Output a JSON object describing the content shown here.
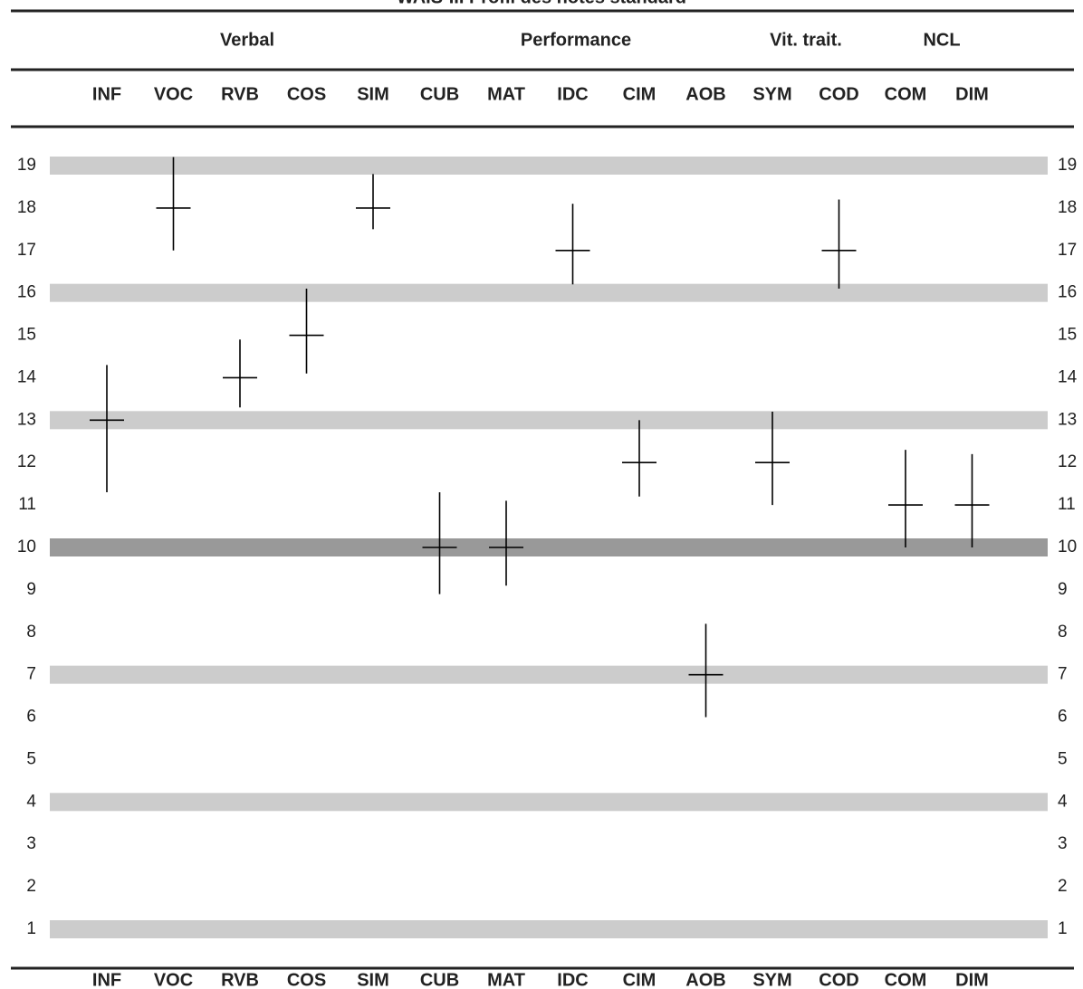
{
  "chart_data": {
    "type": "range",
    "title": "WAIS-III Profil des notes standard",
    "groups": [
      "Verbal",
      "Performance",
      "Vit. trait.",
      "NCL"
    ],
    "categories": [
      "INF",
      "VOC",
      "RVB",
      "COS",
      "SIM",
      "CUB",
      "MAT",
      "IDC",
      "CIM",
      "AOB",
      "SYM",
      "COD",
      "COM",
      "DIM"
    ],
    "values": [
      13,
      18,
      14,
      15,
      18,
      10,
      10,
      17,
      12,
      7,
      12,
      17,
      11,
      11
    ],
    "low": [
      11.3,
      17.0,
      13.3,
      14.1,
      17.5,
      8.9,
      9.1,
      16.2,
      11.2,
      6.0,
      11.0,
      16.1,
      10.0,
      10.0
    ],
    "high": [
      14.3,
      19.2,
      14.9,
      16.1,
      18.8,
      11.3,
      11.1,
      18.1,
      13.0,
      8.2,
      13.2,
      18.2,
      12.3,
      12.2
    ],
    "color": "#000000",
    "ylim": [
      1,
      19
    ],
    "yticks": [
      1,
      2,
      3,
      4,
      5,
      6,
      7,
      8,
      9,
      10,
      11,
      12,
      13,
      14,
      15,
      16,
      17,
      18,
      19
    ],
    "bands": [
      1,
      4,
      7,
      13,
      16,
      19
    ],
    "band_color": "#cccccc",
    "mean_band": 10,
    "mean_band_color": "#999999"
  }
}
